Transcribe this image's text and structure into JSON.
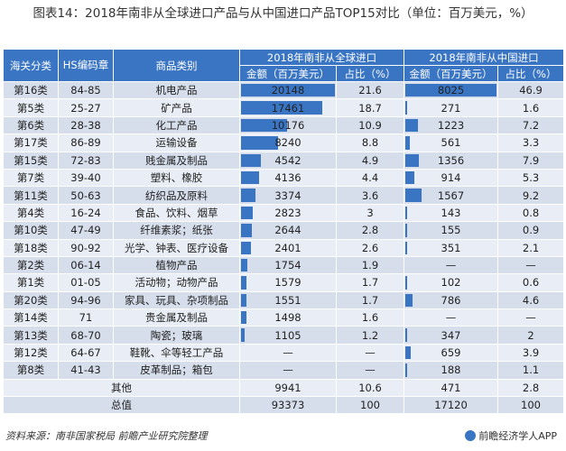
{
  "title": "图表14：2018年南非从全球进口产品与从中国进口产品TOP15对比（单位：百万美元，%）",
  "headers": {
    "customs_class": "海关分类",
    "hs_code": "HS编码章",
    "category": "商品类别",
    "global_group": "2018年南非从全球进口",
    "china_group": "2018年南非从中国进口",
    "amount": "金额（百万美元）",
    "share": "占比（%）"
  },
  "rows": [
    {
      "cls": "第16类",
      "hs": "84-85",
      "cat": "机电产品",
      "g_amt": "20148",
      "g_pct": "21.6",
      "c_amt": "8025",
      "c_pct": "46.9"
    },
    {
      "cls": "第5类",
      "hs": "25-27",
      "cat": "矿产品",
      "g_amt": "17461",
      "g_pct": "18.7",
      "c_amt": "271",
      "c_pct": "1.6"
    },
    {
      "cls": "第6类",
      "hs": "28-38",
      "cat": "化工产品",
      "g_amt": "10176",
      "g_pct": "10.9",
      "c_amt": "1223",
      "c_pct": "7.2"
    },
    {
      "cls": "第17类",
      "hs": "86-89",
      "cat": "运输设备",
      "g_amt": "8240",
      "g_pct": "8.8",
      "c_amt": "561",
      "c_pct": "3.3"
    },
    {
      "cls": "第15类",
      "hs": "72-83",
      "cat": "贱金属及制品",
      "g_amt": "4542",
      "g_pct": "4.9",
      "c_amt": "1356",
      "c_pct": "7.9"
    },
    {
      "cls": "第7类",
      "hs": "39-40",
      "cat": "塑料、橡胶",
      "g_amt": "4136",
      "g_pct": "4.4",
      "c_amt": "914",
      "c_pct": "5.3"
    },
    {
      "cls": "第11类",
      "hs": "50-63",
      "cat": "纺织品及原料",
      "g_amt": "3374",
      "g_pct": "3.6",
      "c_amt": "1567",
      "c_pct": "9.2"
    },
    {
      "cls": "第4类",
      "hs": "16-24",
      "cat": "食品、饮料、烟草",
      "g_amt": "2823",
      "g_pct": "3",
      "c_amt": "143",
      "c_pct": "0.8"
    },
    {
      "cls": "第10类",
      "hs": "47-49",
      "cat": "纤维素浆；纸张",
      "g_amt": "2644",
      "g_pct": "2.8",
      "c_amt": "155",
      "c_pct": "0.9"
    },
    {
      "cls": "第18类",
      "hs": "90-92",
      "cat": "光学、钟表、医疗设备",
      "g_amt": "2401",
      "g_pct": "2.6",
      "c_amt": "351",
      "c_pct": "2.1"
    },
    {
      "cls": "第2类",
      "hs": "06-14",
      "cat": "植物产品",
      "g_amt": "1754",
      "g_pct": "1.9",
      "c_amt": "—",
      "c_pct": "—"
    },
    {
      "cls": "第1类",
      "hs": "01-05",
      "cat": "活动物；动物产品",
      "g_amt": "1579",
      "g_pct": "1.7",
      "c_amt": "102",
      "c_pct": "0.6"
    },
    {
      "cls": "第20类",
      "hs": "94-96",
      "cat": "家具、玩具、杂项制品",
      "g_amt": "1551",
      "g_pct": "1.7",
      "c_amt": "786",
      "c_pct": "4.6"
    },
    {
      "cls": "第14类",
      "hs": "71",
      "cat": "贵金属及制品",
      "g_amt": "1498",
      "g_pct": "1.6",
      "c_amt": "—",
      "c_pct": "—"
    },
    {
      "cls": "第13类",
      "hs": "68-70",
      "cat": "陶瓷；玻璃",
      "g_amt": "1105",
      "g_pct": "1.2",
      "c_amt": "347",
      "c_pct": "2"
    },
    {
      "cls": "第12类",
      "hs": "64-67",
      "cat": "鞋靴、伞等轻工产品",
      "g_amt": "—",
      "g_pct": "—",
      "c_amt": "659",
      "c_pct": "3.9"
    },
    {
      "cls": "第8类",
      "hs": "41-43",
      "cat": "皮革制品；箱包",
      "g_amt": "—",
      "g_pct": "—",
      "c_amt": "188",
      "c_pct": "1.1"
    }
  ],
  "other_row": {
    "label": "其他",
    "g_amt": "9941",
    "g_pct": "10.6",
    "c_amt": "471",
    "c_pct": "2.8"
  },
  "total_row": {
    "label": "总值",
    "g_amt": "93373",
    "g_pct": "100",
    "c_amt": "17120",
    "c_pct": "100"
  },
  "bar_scale": {
    "global_max": 20148,
    "china_max": 8025
  },
  "colors": {
    "accent": "#3a75c4",
    "row_a": "#d6deec",
    "row_b": "#e9edf5"
  },
  "footer": {
    "source": "资料来源：南非国家税局 前瞻产业研究院整理",
    "brand": "前瞻经济学人APP"
  }
}
